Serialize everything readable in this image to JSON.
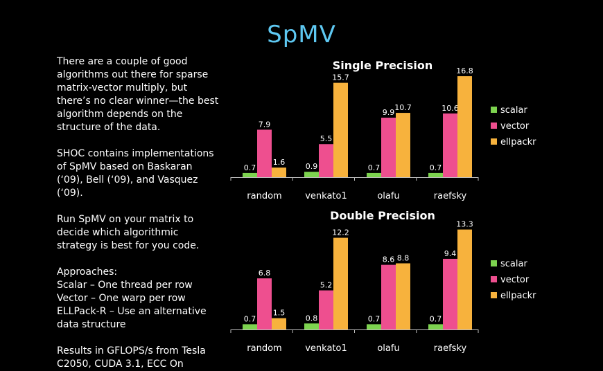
{
  "slide": {
    "title": "SpMV",
    "paragraphs": [
      "There are a couple of good algorithms out there for sparse matrix-vector multiply, but there’s no clear winner—the best algorithm depends on the structure of the data.",
      "SHOC contains implementations of SpMV based on Baskaran (‘09), Bell (‘09), and Vasquez (‘09).",
      "Run SpMV on your matrix to decide which algorithmic strategy is best for you code.",
      "Approaches:\nScalar – One thread per row\nVector – One warp per row\nELLPack-R – Use an alternative data structure",
      "Results in GFLOPS/s from Tesla C2050, CUDA 3.1, ECC On"
    ]
  },
  "colors": {
    "scalar": "#7dd34f",
    "vector": "#ee4f8f",
    "ellpackr": "#f7b23d"
  },
  "chart_data": [
    {
      "type": "bar",
      "title": "Single Precision",
      "categories": [
        "random",
        "venkato1",
        "olafu",
        "raefsky"
      ],
      "series": [
        {
          "name": "scalar",
          "values": [
            0.7,
            0.9,
            0.7,
            0.7
          ]
        },
        {
          "name": "vector",
          "values": [
            7.9,
            5.5,
            9.9,
            10.6
          ]
        },
        {
          "name": "ellpackr",
          "values": [
            1.6,
            15.7,
            10.7,
            16.8
          ]
        }
      ],
      "ylim": [
        0,
        17.5
      ],
      "legend": "right"
    },
    {
      "type": "bar",
      "title": "Double Precision",
      "categories": [
        "random",
        "venkato1",
        "olafu",
        "raefsky"
      ],
      "series": [
        {
          "name": "scalar",
          "values": [
            0.7,
            0.8,
            0.7,
            0.7
          ]
        },
        {
          "name": "vector",
          "values": [
            6.8,
            5.2,
            8.6,
            9.4
          ]
        },
        {
          "name": "ellpackr",
          "values": [
            1.5,
            12.2,
            8.8,
            13.3
          ]
        }
      ],
      "ylim": [
        0,
        14
      ],
      "legend": "right"
    }
  ]
}
